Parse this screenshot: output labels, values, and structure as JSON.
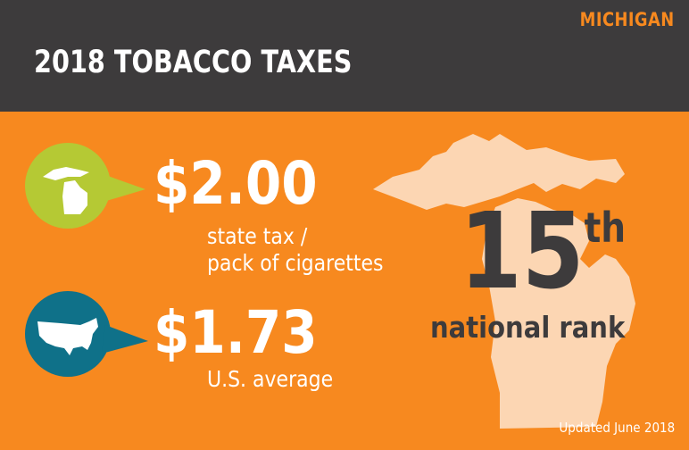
{
  "header": {
    "state": "MICHIGAN",
    "title": "2018 TOBACCO TAXES"
  },
  "state_tax": {
    "value": "$2.00",
    "label_line1": "state tax /",
    "label_line2": "pack of cigarettes",
    "icon": "michigan-outline-icon"
  },
  "us_average": {
    "value": "$1.73",
    "label": "U.S. average",
    "icon": "usa-outline-icon"
  },
  "rank": {
    "number": "15",
    "suffix": "th",
    "label": "national rank"
  },
  "footer": {
    "updated": "Updated June 2018"
  },
  "colors": {
    "background": "#f7891f",
    "header": "#3d3b3c",
    "accent_green": "#b5c934",
    "accent_teal": "#0f7189",
    "map": "#fcd6b3"
  }
}
